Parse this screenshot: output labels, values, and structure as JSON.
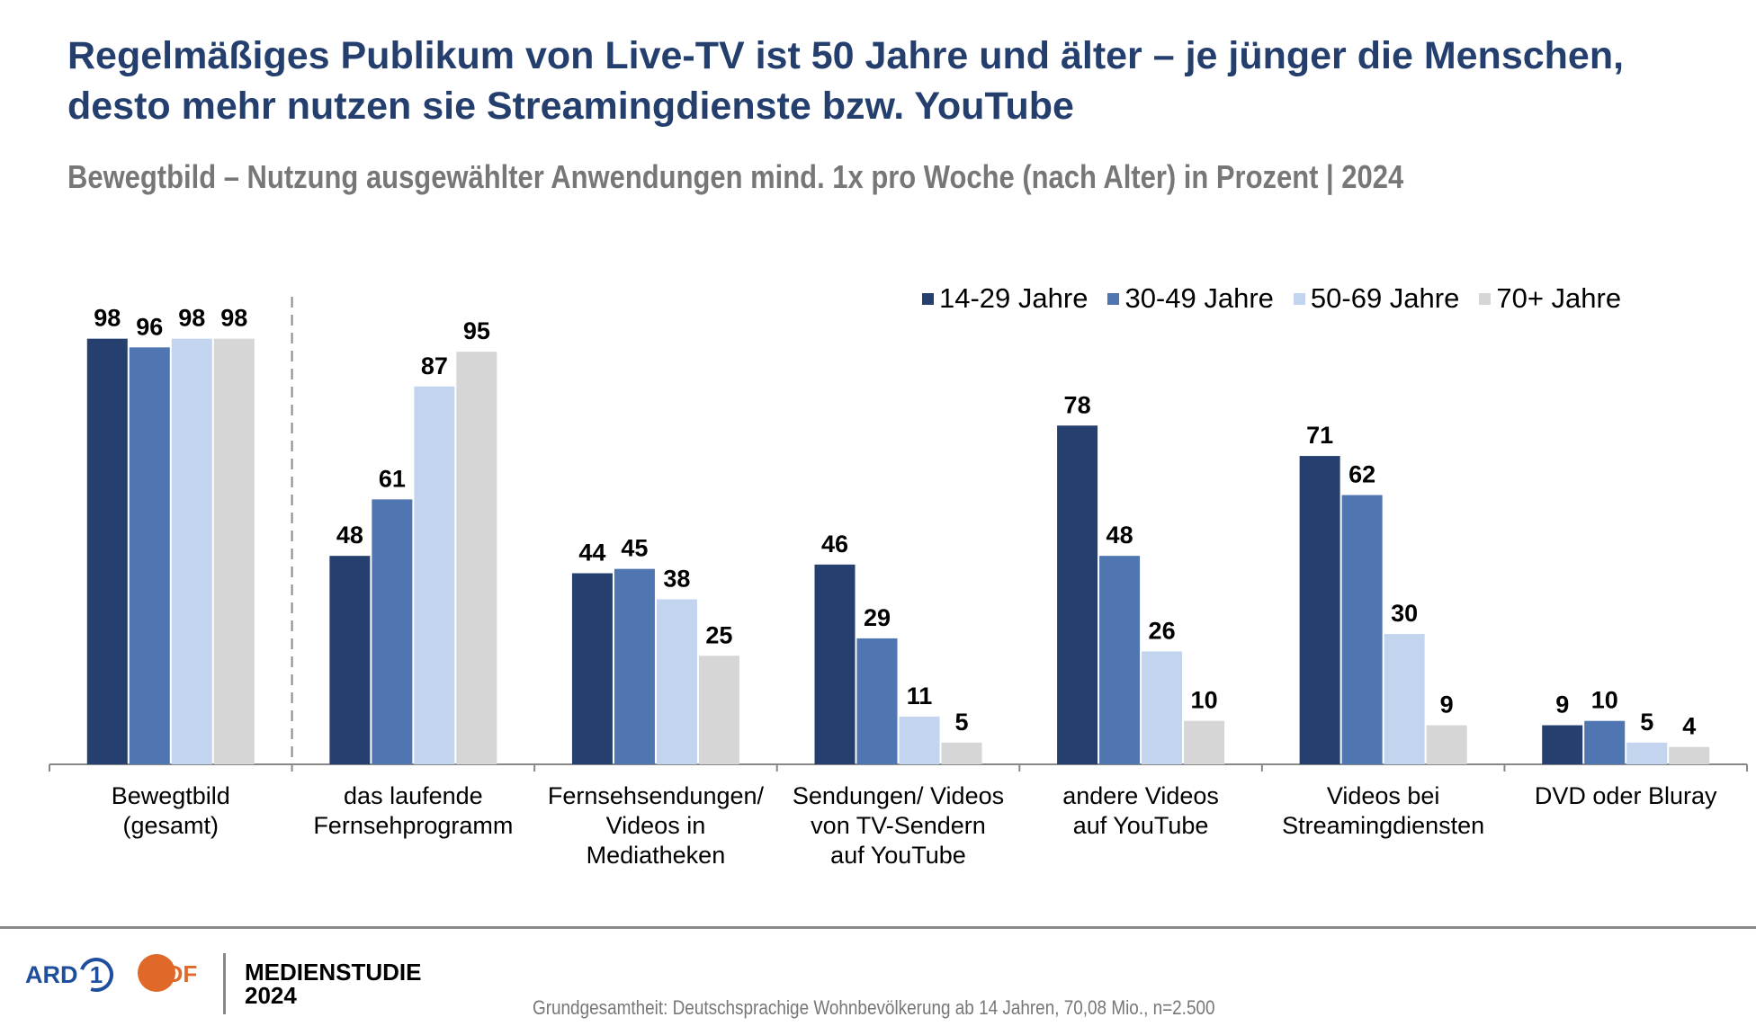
{
  "header": {
    "title": "Regelmäßiges Publikum von Live-TV ist 50 Jahre und älter – je jünger die Menschen, desto mehr nutzen sie Streamingdienste bzw. YouTube",
    "subtitle": "Bewegtbild – Nutzung ausgewählter Anwendungen mind. 1x pro Woche (nach Alter) in Prozent | 2024"
  },
  "chart_data": {
    "type": "bar",
    "title": "Bewegtbild – Nutzung ausgewählter Anwendungen mind. 1x pro Woche (nach Alter) in Prozent | 2024",
    "xlabel": "",
    "ylabel": "",
    "ylim": [
      0,
      100
    ],
    "grid": false,
    "legend_position": "top-right",
    "categories": [
      [
        "Bewegtbild",
        "(gesamt)"
      ],
      [
        "das laufende",
        "Fernsehprogramm"
      ],
      [
        "Fernsehsendungen/",
        "Videos in",
        "Mediatheken"
      ],
      [
        "Sendungen/ Videos",
        "von TV-Sendern",
        "auf YouTube"
      ],
      [
        "andere Videos",
        "auf YouTube"
      ],
      [
        "Videos bei",
        "Streamingdiensten"
      ],
      [
        "DVD oder Bluray"
      ]
    ],
    "series": [
      {
        "name": "14-29 Jahre",
        "color": "#253f6e",
        "values": [
          98,
          48,
          44,
          46,
          78,
          71,
          9
        ]
      },
      {
        "name": "30-49 Jahre",
        "color": "#4f76b0",
        "values": [
          96,
          61,
          45,
          29,
          48,
          62,
          10
        ]
      },
      {
        "name": "50-69 Jahre",
        "color": "#c2d4ee",
        "values": [
          98,
          87,
          38,
          11,
          26,
          30,
          5
        ]
      },
      {
        "name": "70+ Jahre",
        "color": "#d6d6d6",
        "values": [
          98,
          95,
          25,
          5,
          10,
          9,
          4
        ]
      }
    ],
    "separator_after_category": 0
  },
  "legend": {
    "items": [
      {
        "label": "14-29 Jahre",
        "color": "#253f6e"
      },
      {
        "label": "30-49 Jahre",
        "color": "#4f76b0"
      },
      {
        "label": "50-69 Jahre",
        "color": "#c2d4ee"
      },
      {
        "label": "70+ Jahre",
        "color": "#d6d6d6"
      }
    ]
  },
  "footer": {
    "ard_label": "ARD",
    "ard_number": "1",
    "zdf_label": "ZDF",
    "study_line1": "MEDIENSTUDIE",
    "study_line2": "2024",
    "note": "Grundgesamtheit: Deutschsprachige Wohnbevölkerung ab 14 Jahren, 70,08 Mio., n=2.500"
  }
}
